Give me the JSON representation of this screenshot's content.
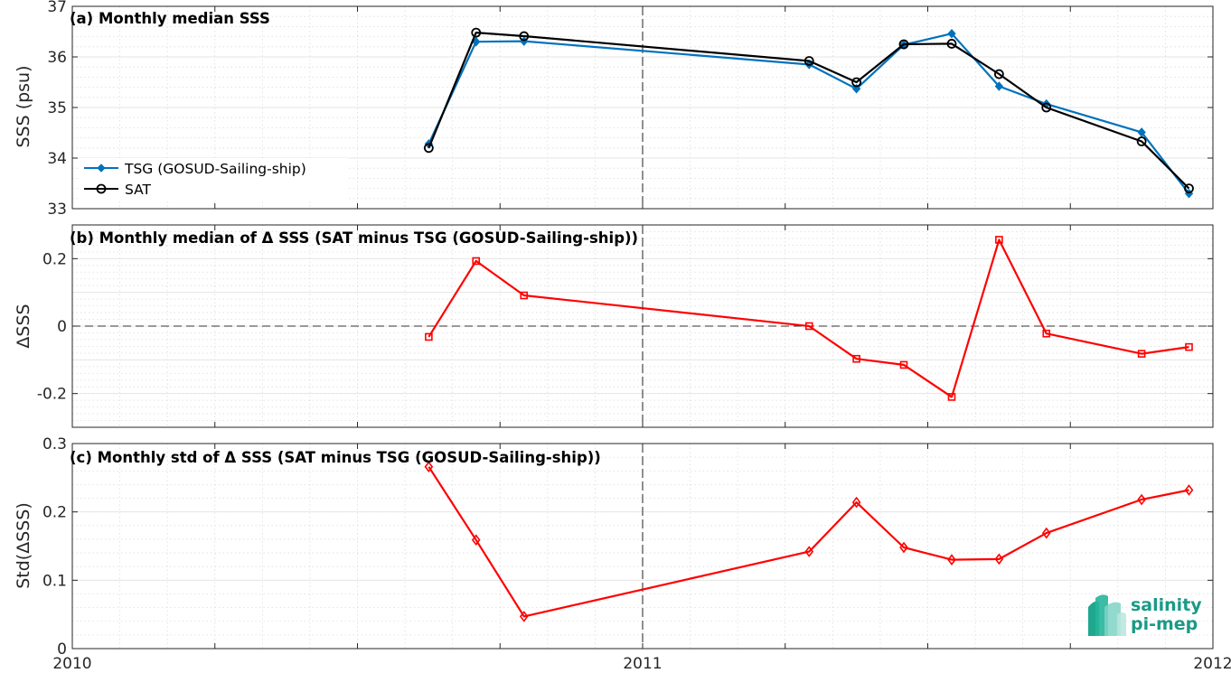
{
  "colors": {
    "tsg": "#0072BD",
    "sat": "#000000",
    "delta": "#FF0000",
    "grid": "#dcdcdc",
    "logo": "#1a9a86"
  },
  "logo": {
    "line1": "salinity",
    "line2": "pi-mep"
  },
  "chart_data": [
    {
      "type": "line",
      "title": "(a) Monthly median SSS",
      "ylabel": "SSS (psu)",
      "xlim": [
        2010,
        2012
      ],
      "ylim": [
        33,
        37
      ],
      "yticks": [
        "33",
        "34",
        "35",
        "36",
        "37"
      ],
      "xticks": [
        "2010",
        "2011",
        "2012"
      ],
      "grid": "on",
      "legend_position": "lower-left",
      "x": [
        2010.625,
        2010.708,
        2010.792,
        2011.292,
        2011.375,
        2011.458,
        2011.542,
        2011.625,
        2011.708,
        2011.875,
        2011.958
      ],
      "series": [
        {
          "name": "TSG (GOSUD-Sailing-ship)",
          "marker": "filled-diamond",
          "values": [
            34.28,
            36.3,
            36.31,
            35.85,
            35.37,
            36.24,
            36.46,
            35.42,
            35.07,
            34.51,
            33.3
          ]
        },
        {
          "name": "SAT",
          "marker": "open-circle",
          "values": [
            34.2,
            36.48,
            36.41,
            35.92,
            35.5,
            36.25,
            36.26,
            35.66,
            35.0,
            34.33,
            33.4
          ]
        }
      ]
    },
    {
      "type": "line",
      "title": "(b) Monthly median of Δ SSS (SAT minus TSG (GOSUD-Sailing-ship))",
      "ylabel": "ΔSSS",
      "xlim": [
        2010,
        2012
      ],
      "ylim": [
        -0.3,
        0.3
      ],
      "yticks": [
        "0.2",
        "0",
        "-0.2"
      ],
      "grid": "on",
      "zero_line": "dashed",
      "x": [
        2010.625,
        2010.708,
        2010.792,
        2011.292,
        2011.375,
        2011.458,
        2011.542,
        2011.625,
        2011.708,
        2011.875,
        2011.958
      ],
      "series": [
        {
          "marker": "open-square",
          "values": [
            -0.032,
            0.193,
            0.091,
            0.0,
            -0.097,
            -0.115,
            -0.21,
            0.256,
            -0.022,
            -0.082,
            -0.062
          ]
        }
      ]
    },
    {
      "type": "line",
      "title": "(c) Monthly std of Δ SSS (SAT minus TSG (GOSUD-Sailing-ship))",
      "ylabel": "Std(ΔSSS)",
      "xlim": [
        2010,
        2012
      ],
      "ylim": [
        0,
        0.3
      ],
      "yticks": [
        "0",
        "0.1",
        "0.2",
        "0.3"
      ],
      "xticks": [
        "2010",
        "2011",
        "2012"
      ],
      "grid": "on",
      "x": [
        2010.625,
        2010.708,
        2010.792,
        2011.292,
        2011.375,
        2011.458,
        2011.542,
        2011.625,
        2011.708,
        2011.875,
        2011.958
      ],
      "series": [
        {
          "marker": "open-diamond",
          "values": [
            0.266,
            0.159,
            0.047,
            0.142,
            0.214,
            0.148,
            0.13,
            0.131,
            0.169,
            0.218,
            0.232
          ]
        }
      ]
    }
  ]
}
